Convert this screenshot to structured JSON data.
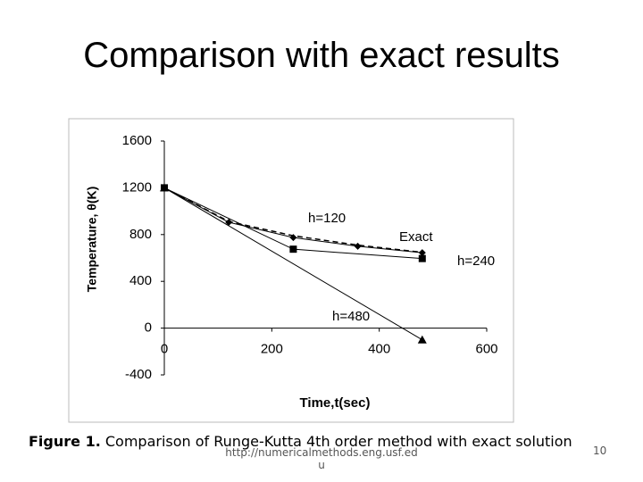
{
  "slide": {
    "title": "Comparison with exact results",
    "caption_label": "Figure 1.",
    "caption_text": "Comparison of Runge-Kutta 4th order method with exact solution",
    "url": "http://numericalmethods.eng.usf.edu",
    "page_number": "10"
  },
  "chart_data": {
    "type": "line",
    "x_label": "Time,t(sec)",
    "y_label": "Temperature, θ(K)",
    "xlim": [
      0,
      600
    ],
    "xticks": [
      0,
      200,
      400,
      600
    ],
    "ylim": [
      -400,
      1600
    ],
    "yticks": [
      -400,
      0,
      400,
      800,
      1200,
      1600
    ],
    "grid": false,
    "series": [
      {
        "name": "h=120",
        "color": "#000000",
        "marker": "diamond",
        "dashed": false,
        "x": [
          0,
          120,
          240,
          360,
          480
        ],
        "values": [
          1200,
          905,
          775,
          700,
          645
        ]
      },
      {
        "name": "Exact",
        "color": "#000000",
        "marker": "none",
        "dashed": true,
        "x": [
          0,
          120,
          240,
          360,
          480
        ],
        "values": [
          1200,
          912,
          790,
          710,
          648
        ]
      },
      {
        "name": "h=240",
        "color": "#000000",
        "marker": "square",
        "dashed": false,
        "x": [
          0,
          240,
          480
        ],
        "values": [
          1200,
          675,
          595
        ]
      },
      {
        "name": "h=480",
        "color": "#000000",
        "marker": "triangle",
        "dashed": false,
        "x": [
          0,
          480
        ],
        "values": [
          1200,
          -100
        ]
      }
    ]
  }
}
